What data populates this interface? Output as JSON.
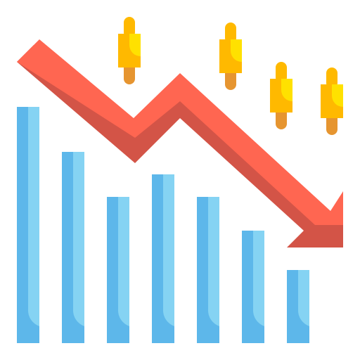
{
  "icon": {
    "name": "stock-market-decline-icon",
    "colors": {
      "bar_dark": "#5db7ea",
      "bar_light": "#85d3f3",
      "arrow_light": "#ff6651",
      "arrow_dark": "#d35447",
      "candle_body": "#ffb900",
      "candle_highlight": "#ffe100",
      "candle_wick_top": "#ffb900",
      "candle_wick_bottom": "#e69530"
    }
  }
}
